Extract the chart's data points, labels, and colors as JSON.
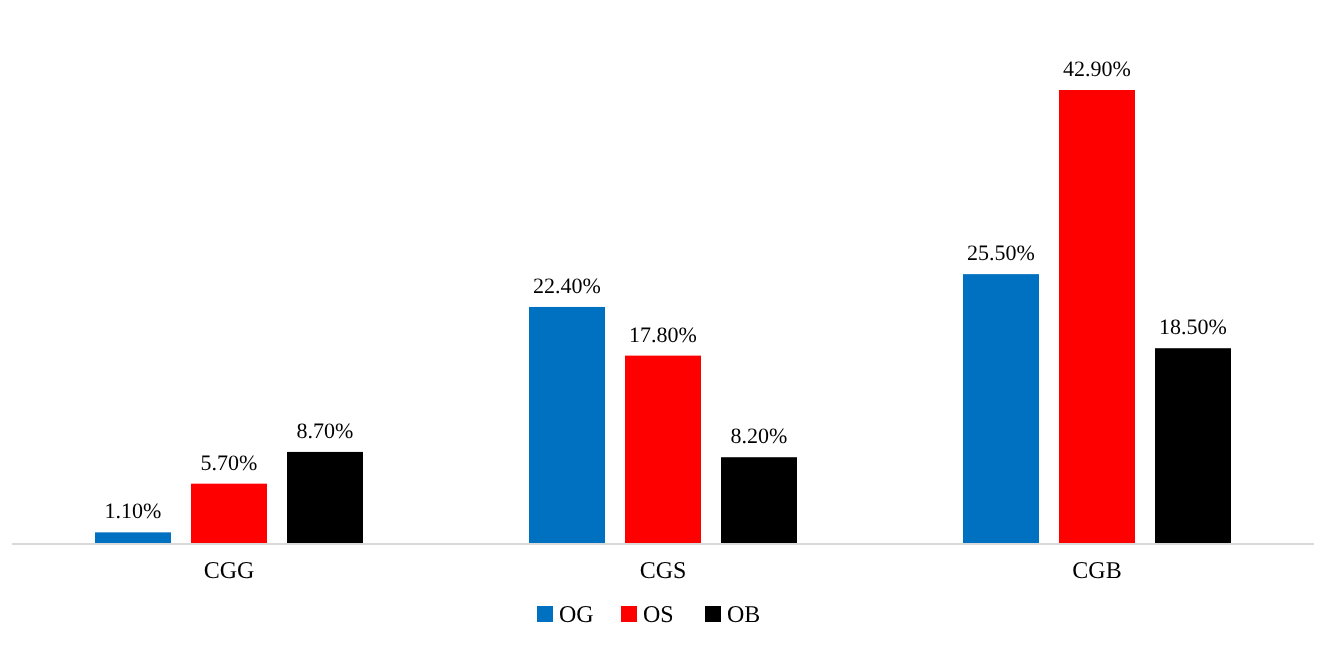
{
  "chart_data": {
    "type": "bar",
    "categories": [
      "CGG",
      "CGS",
      "CGB"
    ],
    "series": [
      {
        "name": "OG",
        "color": "#0070c0",
        "values": [
          1.1,
          22.4,
          25.5
        ],
        "value_labels": [
          "1.10%",
          "22.40%",
          "25.50%"
        ]
      },
      {
        "name": "OS",
        "color": "#ff0000",
        "values": [
          5.7,
          17.8,
          42.9
        ],
        "value_labels": [
          "5.70%",
          "17.80%",
          "42.90%"
        ]
      },
      {
        "name": "OB",
        "color": "#000000",
        "values": [
          8.7,
          8.2,
          18.5
        ],
        "value_labels": [
          "8.70%",
          "8.20%",
          "18.50%"
        ]
      }
    ],
    "legend": "bottom"
  }
}
